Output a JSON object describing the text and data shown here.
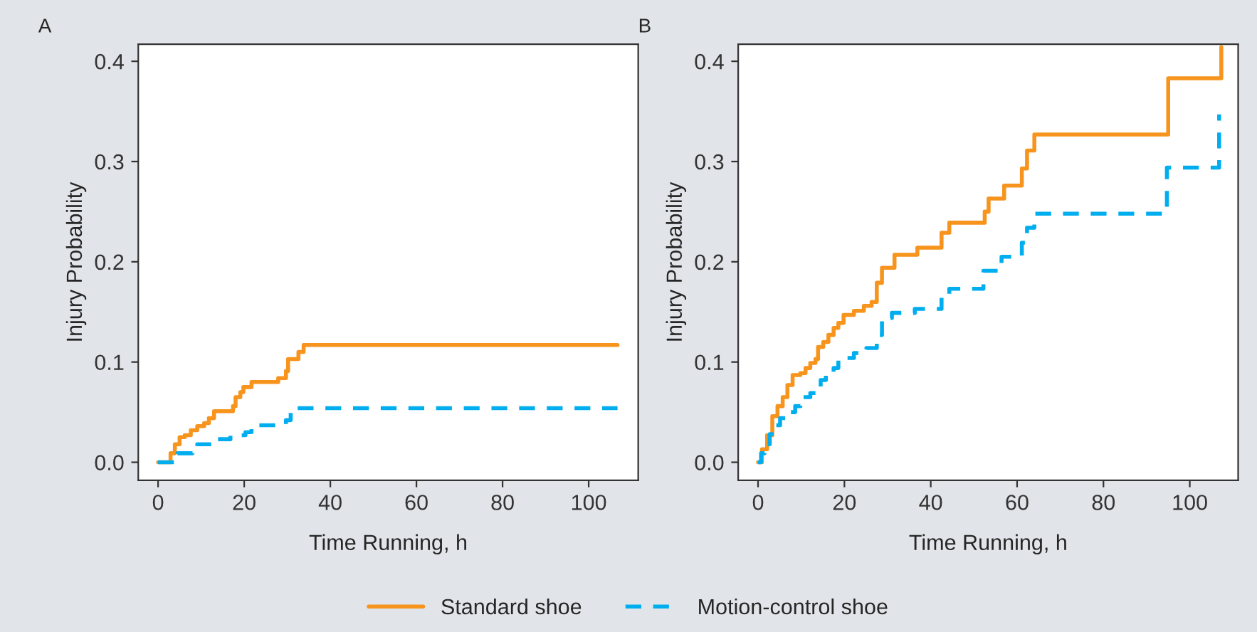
{
  "chart_data": [
    {
      "type": "step",
      "title": "A",
      "xlabel": "Time Running, h",
      "ylabel": "Injury Probability",
      "legend": "bottom",
      "grid": false,
      "xlim": [
        -4.6,
        111.5
      ],
      "ylim": [
        -0.018,
        0.417
      ],
      "xticks": [
        0,
        20,
        40,
        60,
        80,
        100
      ],
      "yticks": [
        {
          "value": 0,
          "label": "0.0"
        },
        0.1,
        0.2,
        0.3,
        0.4
      ],
      "series": [
        {
          "name": "Standard shoe",
          "color": "#f7941d",
          "line_style": "solid",
          "x": [
            0,
            2.9,
            3.9,
            5,
            6.2,
            7.6,
            9.1,
            10.7,
            11.8,
            13,
            17.4,
            18,
            19.1,
            19.8,
            21.7,
            27.9,
            29.7,
            30.2,
            32.6,
            33.8,
            106.7
          ],
          "values": [
            0,
            0.009,
            0.018,
            0.025,
            0.027,
            0.032,
            0.036,
            0.039,
            0.044,
            0.051,
            0.056,
            0.065,
            0.07,
            0.075,
            0.08,
            0.084,
            0.091,
            0.103,
            0.11,
            0.117,
            0.117
          ]
        },
        {
          "name": "Motion-control shoe",
          "color": "#00aeef",
          "line_style": "dashed",
          "x": [
            0,
            4.5,
            8,
            9.1,
            12.7,
            16.8,
            20.3,
            21.7,
            29.7,
            30.8,
            106.7
          ],
          "values": [
            0,
            0.009,
            0.013,
            0.018,
            0.023,
            0.027,
            0.03,
            0.037,
            0.042,
            0.054,
            0.054
          ]
        }
      ]
    },
    {
      "type": "step",
      "title": "B",
      "xlabel": "Time Running, h",
      "ylabel": "Injury Probability",
      "grid": false,
      "xlim": [
        -4.6,
        111.2
      ],
      "ylim": [
        -0.018,
        0.417
      ],
      "xticks": [
        0,
        20,
        40,
        60,
        80,
        100
      ],
      "yticks": [
        {
          "value": 0,
          "label": "0.0"
        },
        0.1,
        0.2,
        0.3,
        0.4
      ],
      "series": [
        {
          "name": "Standard shoe",
          "color": "#f7941d",
          "line_style": "solid",
          "x": [
            0,
            0.9,
            2.1,
            3.3,
            4.5,
            5.7,
            6.8,
            8,
            9.8,
            11,
            12.1,
            13.3,
            13.9,
            15.1,
            16.3,
            17.5,
            18.6,
            19.8,
            22.2,
            24.5,
            26.3,
            27.5,
            28.7,
            31.6,
            36.9,
            42.5,
            44.3,
            52.5,
            53.4,
            57,
            61.1,
            62.3,
            64,
            95,
            107.3
          ],
          "values": [
            0,
            0.013,
            0.027,
            0.046,
            0.056,
            0.065,
            0.077,
            0.087,
            0.089,
            0.094,
            0.099,
            0.103,
            0.115,
            0.12,
            0.127,
            0.134,
            0.139,
            0.147,
            0.151,
            0.156,
            0.16,
            0.179,
            0.194,
            0.207,
            0.214,
            0.229,
            0.239,
            0.25,
            0.263,
            0.276,
            0.293,
            0.311,
            0.327,
            0.383,
            0.414
          ]
        },
        {
          "name": "Motion-control shoe",
          "color": "#00aeef",
          "line_style": "dashed",
          "x": [
            0,
            0.7,
            1.5,
            2.7,
            3.9,
            5.1,
            6.6,
            8.6,
            9.8,
            12.1,
            13.3,
            14.5,
            15.7,
            17.5,
            18.6,
            19.8,
            22.2,
            25.1,
            27.5,
            28.7,
            31,
            36.3,
            42.5,
            44.3,
            52.2,
            56.4,
            61.1,
            62.3,
            64,
            94.7,
            106.8
          ],
          "values": [
            0,
            0.009,
            0.018,
            0.028,
            0.037,
            0.044,
            0.05,
            0.056,
            0.065,
            0.069,
            0.075,
            0.082,
            0.09,
            0.094,
            0.102,
            0.104,
            0.109,
            0.114,
            0.127,
            0.144,
            0.149,
            0.153,
            0.167,
            0.173,
            0.191,
            0.205,
            0.219,
            0.234,
            0.248,
            0.294,
            0.347
          ]
        }
      ]
    }
  ]
}
